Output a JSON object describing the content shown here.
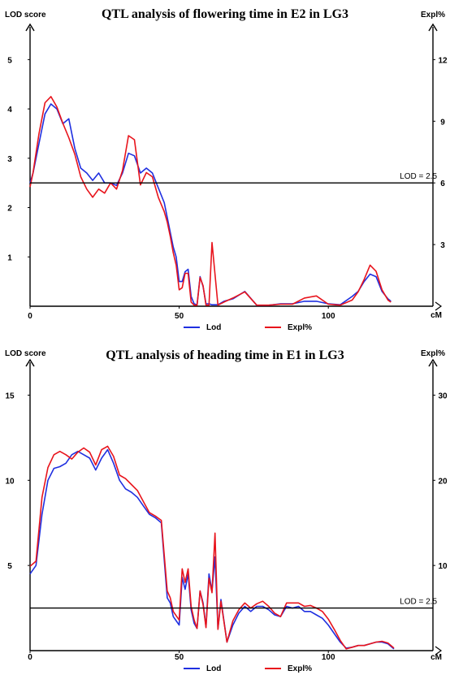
{
  "chart_data": [
    {
      "type": "line",
      "title": "QTL analysis of  flowering time in E2 in LG3",
      "ylabel": "LOD score",
      "y2label": "Expl%",
      "xlabel": "cM",
      "xlim": [
        0,
        125
      ],
      "ylim": [
        0,
        5.5
      ],
      "y2lim": [
        0,
        13.2
      ],
      "x_ticks": [
        0,
        50,
        100
      ],
      "y_ticks": [
        1,
        2,
        3,
        4,
        5
      ],
      "y2_ticks": [
        3,
        6,
        9,
        12
      ],
      "threshold": {
        "label": "LOD = 2.5",
        "value": 2.5
      },
      "legend_position": "bottom",
      "colors": {
        "Lod": "#1f2fe0",
        "Expl%": "#e8141c",
        "threshold": "#000000"
      },
      "series": [
        {
          "name": "Lod",
          "axis": "left",
          "x": [
            0,
            1,
            3,
            5,
            7,
            9,
            11,
            13,
            15,
            17,
            19,
            21,
            23,
            25,
            27,
            29,
            31,
            33,
            35,
            37,
            39,
            41,
            43,
            45,
            46,
            47,
            48,
            49,
            50,
            51,
            52,
            53,
            54,
            55,
            56,
            57,
            58,
            59,
            60,
            61,
            63,
            65,
            68,
            72,
            76,
            80,
            84,
            88,
            92,
            96,
            100,
            104,
            108,
            110,
            112,
            114,
            116,
            118,
            120,
            121
          ],
          "y": [
            2.5,
            2.7,
            3.3,
            3.9,
            4.1,
            4.0,
            3.7,
            3.8,
            3.2,
            2.8,
            2.7,
            2.55,
            2.7,
            2.5,
            2.5,
            2.45,
            2.7,
            3.1,
            3.05,
            2.7,
            2.8,
            2.7,
            2.4,
            2.1,
            1.8,
            1.5,
            1.2,
            1.0,
            0.5,
            0.5,
            0.7,
            0.75,
            0.2,
            0.05,
            0.03,
            0.6,
            0.4,
            0.05,
            0.05,
            0.03,
            0.03,
            0.1,
            0.15,
            0.3,
            0.02,
            0.02,
            0.05,
            0.05,
            0.1,
            0.1,
            0.05,
            0.03,
            0.2,
            0.3,
            0.5,
            0.65,
            0.6,
            0.3,
            0.15,
            0.1
          ]
        },
        {
          "name": "Expl%",
          "axis": "right",
          "x": [
            0,
            1,
            3,
            5,
            7,
            9,
            11,
            13,
            15,
            17,
            19,
            21,
            23,
            25,
            27,
            29,
            31,
            33,
            35,
            37,
            39,
            41,
            43,
            45,
            46,
            47,
            48,
            49,
            50,
            51,
            52,
            53,
            54,
            55,
            56,
            57,
            58,
            59,
            60,
            61,
            63,
            65,
            68,
            72,
            76,
            80,
            84,
            88,
            92,
            96,
            100,
            104,
            108,
            110,
            112,
            114,
            116,
            118,
            120,
            121
          ],
          "y": [
            5.8,
            6.5,
            8.4,
            9.9,
            10.2,
            9.7,
            8.9,
            8.2,
            7.4,
            6.3,
            5.7,
            5.3,
            5.7,
            5.5,
            6.0,
            5.7,
            6.6,
            8.3,
            8.1,
            5.9,
            6.5,
            6.3,
            5.3,
            4.6,
            4.1,
            3.4,
            2.6,
            2.0,
            0.8,
            0.9,
            1.6,
            1.6,
            0.2,
            0.05,
            0.05,
            1.4,
            1.0,
            0.05,
            0.05,
            3.1,
            0.05,
            0.2,
            0.4,
            0.7,
            0.05,
            0.05,
            0.1,
            0.1,
            0.4,
            0.5,
            0.1,
            0.05,
            0.3,
            0.7,
            1.3,
            2.0,
            1.7,
            0.8,
            0.3,
            0.2
          ]
        }
      ],
      "legend": [
        {
          "name": "Lod",
          "color": "#1f2fe0"
        },
        {
          "name": "Expl%",
          "color": "#e8141c"
        }
      ]
    },
    {
      "type": "line",
      "title": "QTL analysis of  heading time in E1 in LG3",
      "ylabel": "LOD score",
      "y2label": "Expl%",
      "xlabel": "cM",
      "xlim": [
        0,
        125
      ],
      "ylim": [
        0,
        16.5
      ],
      "y2lim": [
        0,
        33
      ],
      "x_ticks": [
        0,
        50,
        100
      ],
      "y_ticks": [
        5,
        10,
        15
      ],
      "y2_ticks": [
        10,
        20,
        30
      ],
      "threshold": {
        "label": "LOD = 2.5",
        "value": 2.5
      },
      "legend_position": "bottom",
      "colors": {
        "Lod": "#1f2fe0",
        "Expl%": "#e8141c",
        "threshold": "#000000"
      },
      "series": [
        {
          "name": "Lod",
          "axis": "left",
          "x": [
            0,
            2,
            4,
            6,
            8,
            10,
            12,
            14,
            16,
            18,
            20,
            22,
            24,
            26,
            28,
            30,
            32,
            34,
            36,
            38,
            40,
            42,
            44,
            46,
            47,
            48,
            50,
            51,
            52,
            53,
            54,
            55,
            56,
            57,
            58,
            59,
            60,
            61,
            62,
            63,
            64,
            66,
            68,
            70,
            72,
            74,
            76,
            78,
            80,
            82,
            84,
            86,
            88,
            90,
            92,
            94,
            96,
            98,
            100,
            102,
            104,
            106,
            108,
            110,
            112,
            114,
            116,
            118,
            120,
            122
          ],
          "y": [
            4.5,
            5.0,
            8.0,
            10.0,
            10.7,
            10.8,
            11.0,
            11.5,
            11.7,
            11.5,
            11.3,
            10.6,
            11.3,
            11.8,
            11.0,
            10.0,
            9.5,
            9.3,
            9.0,
            8.5,
            8.0,
            7.8,
            7.5,
            3.1,
            2.8,
            2.0,
            1.5,
            4.3,
            3.6,
            4.5,
            2.4,
            1.6,
            1.3,
            3.5,
            2.8,
            1.4,
            4.5,
            3.5,
            5.5,
            1.3,
            3.0,
            0.5,
            1.5,
            2.2,
            2.6,
            2.3,
            2.6,
            2.6,
            2.4,
            2.1,
            2.0,
            2.6,
            2.5,
            2.6,
            2.3,
            2.3,
            2.1,
            1.9,
            1.5,
            1.0,
            0.5,
            0.15,
            0.2,
            0.3,
            0.3,
            0.4,
            0.5,
            0.5,
            0.4,
            0.1
          ]
        },
        {
          "name": "Expl%",
          "axis": "right",
          "x": [
            0,
            2,
            4,
            6,
            8,
            10,
            12,
            14,
            16,
            18,
            20,
            22,
            24,
            26,
            28,
            30,
            32,
            34,
            36,
            38,
            40,
            42,
            44,
            46,
            47,
            48,
            50,
            51,
            52,
            53,
            54,
            55,
            56,
            57,
            58,
            59,
            60,
            61,
            62,
            63,
            64,
            66,
            68,
            70,
            72,
            74,
            76,
            78,
            80,
            82,
            84,
            86,
            88,
            90,
            92,
            94,
            96,
            98,
            100,
            102,
            104,
            106,
            108,
            110,
            112,
            114,
            116,
            118,
            120,
            122
          ],
          "y": [
            9.9,
            10.5,
            18.0,
            21.5,
            23.0,
            23.4,
            23.0,
            22.5,
            23.3,
            23.8,
            23.3,
            21.8,
            23.6,
            24.0,
            22.8,
            20.6,
            20.2,
            19.5,
            18.8,
            17.5,
            16.2,
            15.8,
            15.3,
            7.0,
            6.2,
            4.6,
            3.6,
            9.6,
            8.0,
            9.6,
            5.2,
            3.6,
            2.6,
            7.0,
            5.4,
            2.7,
            8.5,
            6.8,
            13.8,
            2.5,
            5.8,
            1.0,
            3.5,
            4.8,
            5.6,
            5.0,
            5.5,
            5.8,
            5.2,
            4.4,
            4.0,
            5.6,
            5.6,
            5.6,
            5.2,
            5.3,
            5.0,
            4.6,
            3.7,
            2.5,
            1.2,
            0.2,
            0.4,
            0.6,
            0.6,
            0.8,
            1.0,
            1.1,
            0.9,
            0.3
          ]
        }
      ],
      "legend": [
        {
          "name": "Lod",
          "color": "#1f2fe0"
        },
        {
          "name": "Expl%",
          "color": "#e8141c"
        }
      ]
    }
  ]
}
